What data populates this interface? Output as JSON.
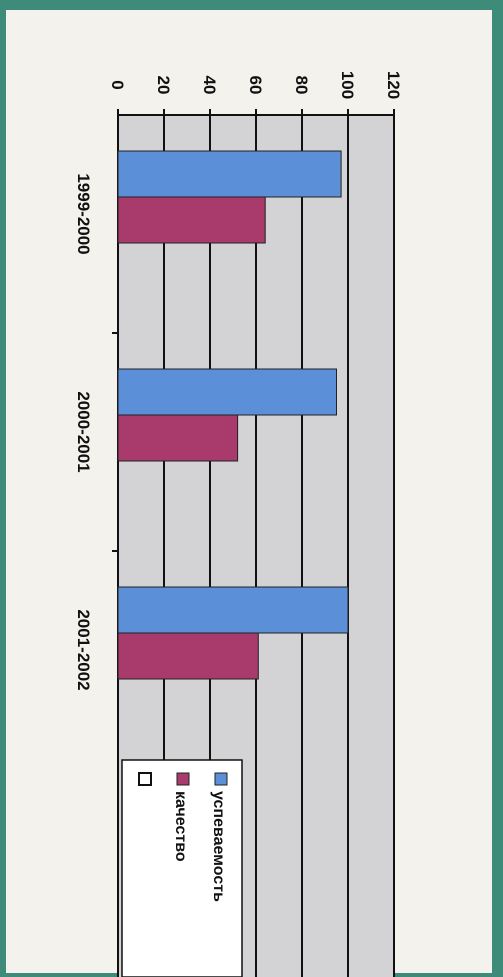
{
  "chart_data": {
    "type": "bar",
    "orientation": "rotated-90-clockwise",
    "categories": [
      "1999-2000",
      "2000-2001",
      "2001-2002"
    ],
    "series": [
      {
        "name": "успеваемость",
        "values": [
          97,
          95,
          100
        ],
        "color": "#5b8fd8"
      },
      {
        "name": "качество",
        "values": [
          64,
          52,
          61
        ],
        "color": "#a83a6c"
      },
      {
        "name": "",
        "values": [
          0,
          0,
          0
        ],
        "color": "#ffffff"
      }
    ],
    "title": "",
    "xlabel": "",
    "ylabel": "",
    "ylim": [
      0,
      120
    ],
    "yticks": [
      "0",
      "20",
      "40",
      "60",
      "80",
      "100",
      "120"
    ],
    "grid": true,
    "legend": "bottom-right"
  },
  "colors": {
    "plot_background": "#d3d3d5",
    "gridline": "#111111",
    "frame": "#3f8b79"
  }
}
